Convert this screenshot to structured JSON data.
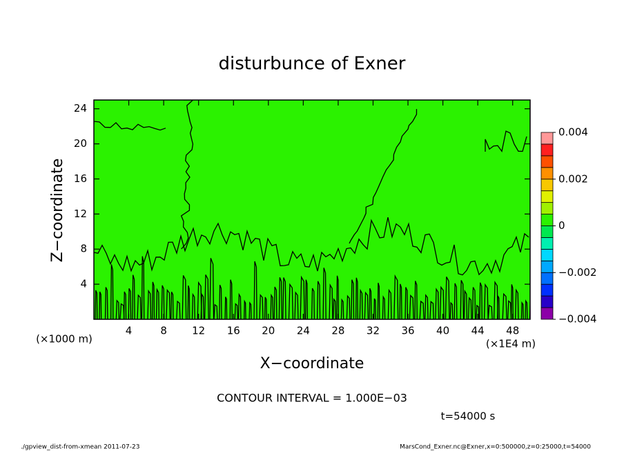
{
  "chart_data": {
    "type": "contour",
    "title": "disturbunce of Exner",
    "x_label": "X−coordinate",
    "y_label": "Z−coordinate",
    "x_unit": "(×1E4 m)",
    "y_unit": "(×1000 m)",
    "xlim": [
      0,
      50
    ],
    "ylim": [
      0,
      25
    ],
    "xticks": [
      4,
      8,
      12,
      16,
      20,
      24,
      28,
      32,
      36,
      40,
      44,
      48
    ],
    "yticks": [
      4,
      8,
      12,
      16,
      20,
      24
    ],
    "field_color": "#2bf200",
    "colorbar": {
      "levels": [
        -0.004,
        -0.0035,
        -0.003,
        -0.0025,
        -0.002,
        -0.0015,
        -0.001,
        -0.0005,
        0,
        0.0005,
        0.001,
        0.0015,
        0.002,
        0.0025,
        0.003,
        0.0035,
        0.004
      ],
      "colors": [
        "#8c00a8",
        "#2800c8",
        "#0030ff",
        "#0070ff",
        "#00a8ff",
        "#00d8ff",
        "#00f0b0",
        "#00e850",
        "#2bf200",
        "#a0f000",
        "#e0f000",
        "#f8c800",
        "#ff9000",
        "#ff5000",
        "#ff2020",
        "#ff9898"
      ],
      "ticks": [
        {
          "value": 0.004,
          "label": "0.004"
        },
        {
          "value": 0.002,
          "label": "0.002"
        },
        0,
        {
          "value": -0.002,
          "label": "−0.002"
        },
        {
          "value": -0.004,
          "label": "−0.004"
        }
      ]
    },
    "annotations": {
      "contour_interval": "CONTOUR INTERVAL = 1.000E−03",
      "time": "t=54000 s",
      "footer_left": "./gpview_dist-from-xmean  2011-07-23",
      "footer_right": "MarsCond_Exner.nc@Exner,x=0:500000,z=0:25000,t=54000"
    }
  }
}
